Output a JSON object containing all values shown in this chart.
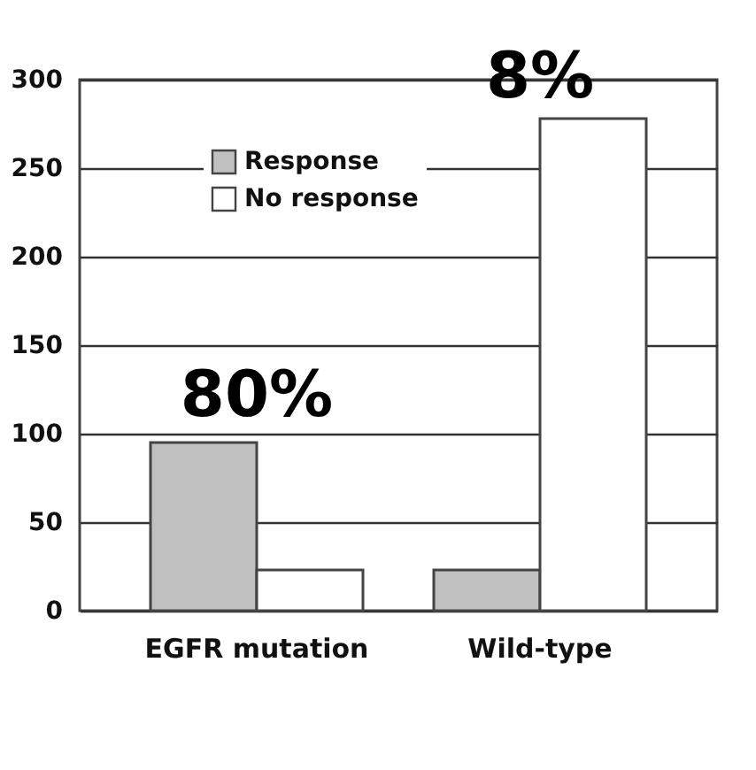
{
  "chart_data": {
    "type": "bar",
    "categories": [
      "EGFR mutation",
      "Wild-type"
    ],
    "series": [
      {
        "name": "Response",
        "color": "#c0c0c0",
        "values": [
          95,
          23
        ]
      },
      {
        "name": "No response",
        "color": "#ffffff",
        "values": [
          23,
          278
        ]
      }
    ],
    "ylim": [
      0,
      300
    ],
    "yticks": [
      0,
      50,
      100,
      150,
      200,
      250,
      300
    ],
    "grid": "y",
    "legend": "top left",
    "annotations": [
      {
        "text": "80%",
        "x": "EGFR mutation",
        "y": 100
      },
      {
        "text": "8%",
        "x": "Wild-type",
        "y": 280
      }
    ]
  }
}
